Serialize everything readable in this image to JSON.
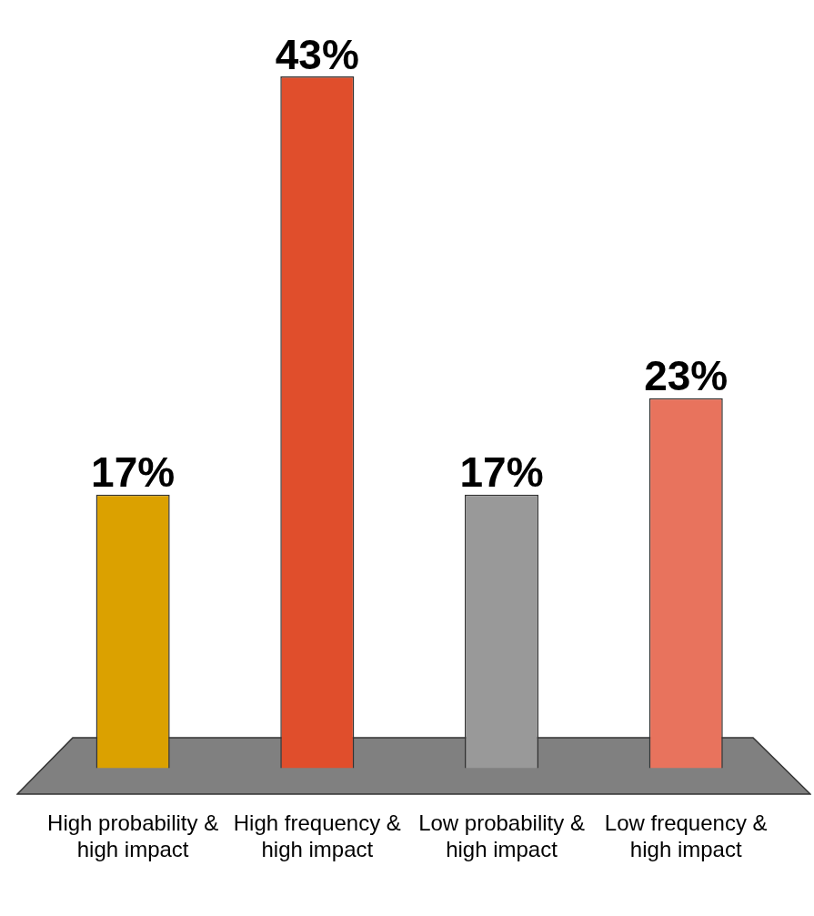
{
  "chart_data": {
    "type": "bar",
    "categories": [
      "High probability & high impact",
      "High frequency & high impact",
      "Low probability & high impact",
      "Low frequency & high impact"
    ],
    "values": [
      17,
      43,
      17,
      23
    ],
    "colors": [
      "#dba100",
      "#e04e2c",
      "#999999",
      "#e8735d"
    ],
    "value_labels": [
      "17%",
      "43%",
      "17%",
      "23%"
    ],
    "grid": false,
    "legend": false
  }
}
